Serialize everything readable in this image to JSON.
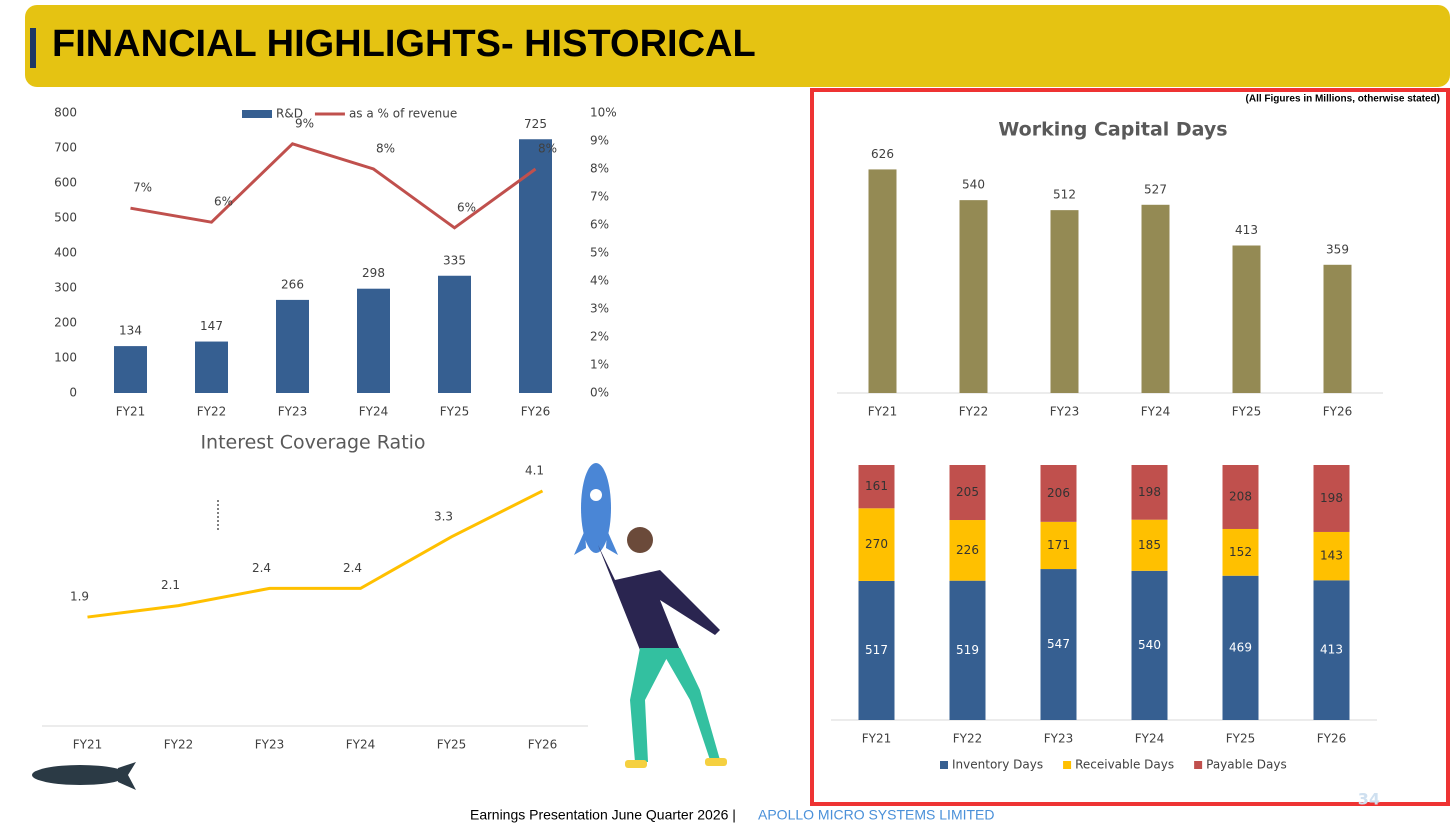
{
  "header": {
    "title": "FINANCIAL HIGHLIGHTS- HISTORICAL"
  },
  "note": "(All Figures in Millions, otherwise stated)",
  "footer": {
    "text": "Earnings Presentation June Quarter 2026 |",
    "company": "APOLLO MICRO SYSTEMS LIMITED",
    "page_number": "34"
  },
  "chart_data": [
    {
      "type": "bar",
      "categories": [
        "FY21",
        "FY22",
        "FY23",
        "FY24",
        "FY25",
        "FY26"
      ],
      "series": [
        {
          "name": "R&D",
          "color": "#365f91",
          "values": [
            134,
            147,
            266,
            298,
            335,
            725
          ]
        },
        {
          "name": "as a % of revenue",
          "type": "line",
          "axis": "y2",
          "color": "#c0504d",
          "values": [
            6.6,
            6.1,
            8.9,
            8,
            5.9,
            8
          ],
          "value_labels": [
            "7%",
            "6%",
            "9%",
            "8%",
            "6%",
            "8%"
          ]
        }
      ],
      "ylim": [
        0,
        800
      ],
      "yticks": [
        0,
        100,
        200,
        300,
        400,
        500,
        600,
        700,
        800
      ],
      "y2lim": [
        0,
        10
      ],
      "y2ticks": [
        {
          "value": 0,
          "label": "0%"
        },
        {
          "value": 1,
          "label": "1%"
        },
        {
          "value": 2,
          "label": "2%"
        },
        {
          "value": 3,
          "label": "3%"
        },
        {
          "value": 4,
          "label": "4%"
        },
        {
          "value": 5,
          "label": "5%"
        },
        {
          "value": 6,
          "label": "6%"
        },
        {
          "value": 7,
          "label": "7%"
        },
        {
          "value": 8,
          "label": "8%"
        },
        {
          "value": 9,
          "label": "9%"
        },
        {
          "value": 10,
          "label": "10%"
        }
      ],
      "legend": "top"
    },
    {
      "type": "line",
      "title": "Interest Coverage Ratio",
      "categories": [
        "FY21",
        "FY22",
        "FY23",
        "FY24",
        "FY25",
        "FY26"
      ],
      "values": [
        1.9,
        2.1,
        2.4,
        2.4,
        3.3,
        4.1
      ],
      "color": "#ffc000",
      "ylim": [
        0,
        4.5
      ]
    },
    {
      "type": "bar",
      "title": "Working Capital Days",
      "categories": [
        "FY21",
        "FY22",
        "FY23",
        "FY24",
        "FY25",
        "FY26"
      ],
      "values": [
        626,
        540,
        512,
        527,
        413,
        359
      ],
      "color": "#948a54",
      "ylim": [
        0,
        700
      ]
    },
    {
      "type": "bar",
      "stacked": "percent",
      "categories": [
        "FY21",
        "FY22",
        "FY23",
        "FY24",
        "FY25",
        "FY26"
      ],
      "series": [
        {
          "name": "Inventory Days",
          "color": "#365f91",
          "values": [
            517,
            519,
            547,
            540,
            469,
            413
          ]
        },
        {
          "name": "Receivable Days",
          "color": "#ffc000",
          "values": [
            270,
            226,
            171,
            185,
            152,
            143
          ]
        },
        {
          "name": "Payable Days",
          "color": "#c0504d",
          "values": [
            161,
            205,
            206,
            198,
            208,
            198
          ]
        }
      ],
      "legend": "bottom"
    }
  ]
}
